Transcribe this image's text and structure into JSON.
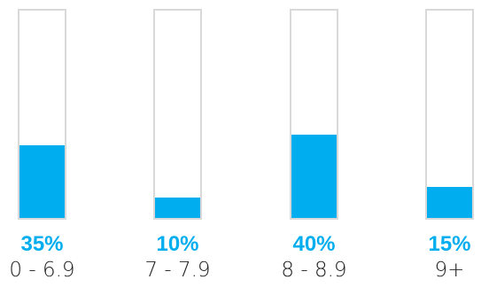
{
  "colors": {
    "fill": "#00adee",
    "frame": "#d9d9d9",
    "label": "#222222"
  },
  "chart_data": {
    "type": "bar",
    "categories": [
      "0 - 6.9",
      "7 - 7.9",
      "8 - 8.9",
      "9+"
    ],
    "values": [
      35,
      10,
      40,
      15
    ],
    "value_labels": [
      "35%",
      "10%",
      "40%",
      "15%"
    ],
    "ylim": [
      0,
      100
    ],
    "grid": false
  }
}
